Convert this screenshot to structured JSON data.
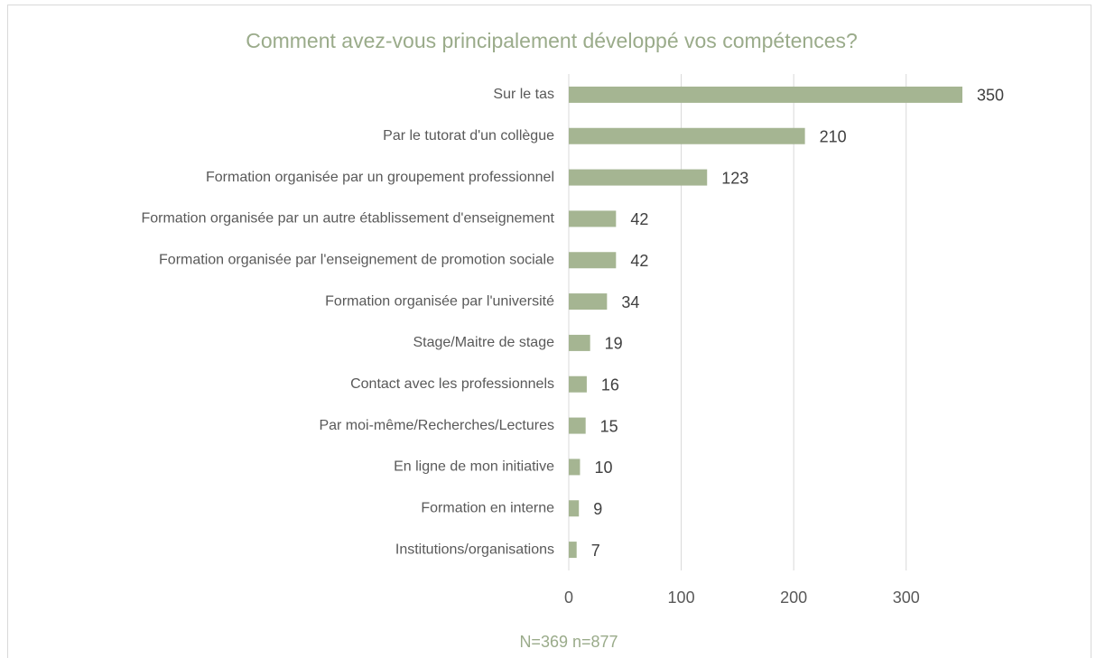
{
  "chart_data": {
    "type": "bar",
    "orientation": "horizontal",
    "title": "Comment avez-vous principalement développé vos compétences?",
    "annotation": "N=369 n=877",
    "categories": [
      "Sur le tas",
      "Par le tutorat d'un collègue",
      "Formation organisée par un groupement professionnel",
      "Formation organisée par un autre établissement d'enseignement",
      "Formation organisée par l'enseignement de promotion sociale",
      "Formation organisée par l'université",
      "Stage/Maitre de stage",
      "Contact avec les professionnels",
      "Par moi-même/Recherches/Lectures",
      "En ligne de mon initiative",
      "Formation en interne",
      "Institutions/organisations"
    ],
    "values": [
      350,
      210,
      123,
      42,
      42,
      34,
      19,
      16,
      15,
      10,
      9,
      7
    ],
    "color": "#a5b592",
    "xlim": [
      0,
      350
    ],
    "xticks": [
      0,
      100,
      200,
      300
    ],
    "grid": true
  }
}
